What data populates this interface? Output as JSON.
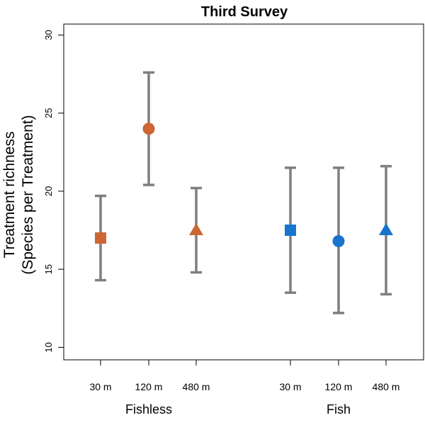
{
  "chart_data": {
    "type": "scatter",
    "title": "Third Survey",
    "ylabel_lines": [
      "Treatment richness",
      "(Species per Treatment)"
    ],
    "ylim": [
      9.2,
      30.7
    ],
    "yticks": [
      10,
      15,
      20,
      25,
      30
    ],
    "grid": false,
    "groups": [
      {
        "name": "Fishless",
        "color": "#cc6633",
        "points": [
          {
            "label": "30 m",
            "value": 17.0,
            "lower": 14.3,
            "upper": 19.7,
            "marker": "square"
          },
          {
            "label": "120 m",
            "value": 24.0,
            "lower": 20.4,
            "upper": 27.6,
            "marker": "circle"
          },
          {
            "label": "480 m",
            "value": 17.5,
            "lower": 14.8,
            "upper": 20.2,
            "marker": "triangle"
          }
        ]
      },
      {
        "name": "Fish",
        "color": "#1874cd",
        "points": [
          {
            "label": "30 m",
            "value": 17.5,
            "lower": 13.5,
            "upper": 21.5,
            "marker": "square"
          },
          {
            "label": "120 m",
            "value": 16.8,
            "lower": 12.2,
            "upper": 21.5,
            "marker": "circle"
          },
          {
            "label": "480 m",
            "value": 17.5,
            "lower": 13.4,
            "upper": 21.6,
            "marker": "triangle"
          }
        ]
      }
    ],
    "errorbar_color": "#7f7f7f"
  }
}
